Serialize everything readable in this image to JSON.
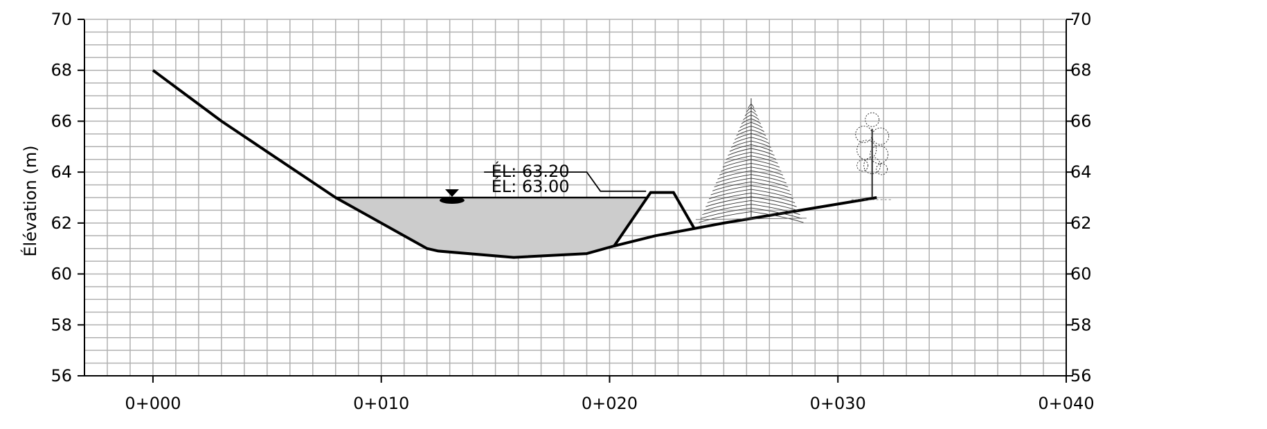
{
  "chart_data": {
    "type": "cross-section",
    "ylabel": "Élévation (m)",
    "xlabel": "",
    "xlim": [
      -3,
      40
    ],
    "ylim": [
      56,
      70
    ],
    "x_ticks": [
      {
        "value": 0,
        "label": "0+000"
      },
      {
        "value": 10,
        "label": "0+010"
      },
      {
        "value": 20,
        "label": "0+020"
      },
      {
        "value": 30,
        "label": "0+030"
      },
      {
        "value": 40,
        "label": "0+040"
      }
    ],
    "y_ticks": [
      {
        "value": 56,
        "label": "56"
      },
      {
        "value": 58,
        "label": "58"
      },
      {
        "value": 60,
        "label": "60"
      },
      {
        "value": 62,
        "label": "62"
      },
      {
        "value": 64,
        "label": "64"
      },
      {
        "value": 66,
        "label": "66"
      },
      {
        "value": 68,
        "label": "68"
      },
      {
        "value": 70,
        "label": "70"
      }
    ],
    "grid": true,
    "ground_profile": [
      {
        "x": 0,
        "y": 68.0
      },
      {
        "x": 3,
        "y": 66.0
      },
      {
        "x": 8,
        "y": 63.0
      },
      {
        "x": 12,
        "y": 61.0
      },
      {
        "x": 12.5,
        "y": 60.9
      },
      {
        "x": 15.8,
        "y": 60.65
      },
      {
        "x": 19,
        "y": 60.8
      },
      {
        "x": 20.2,
        "y": 61.1
      },
      {
        "x": 22,
        "y": 61.5
      },
      {
        "x": 25,
        "y": 62.0
      },
      {
        "x": 31.7,
        "y": 63.0
      }
    ],
    "water": {
      "level": 63.0,
      "polygon": [
        {
          "x": 8,
          "y": 63.0
        },
        {
          "x": 12,
          "y": 61.0
        },
        {
          "x": 12.5,
          "y": 60.9
        },
        {
          "x": 15.8,
          "y": 60.65
        },
        {
          "x": 19,
          "y": 60.8
        },
        {
          "x": 20.2,
          "y": 61.1
        },
        {
          "x": 21.6,
          "y": 63.0
        }
      ],
      "fill": "#cccccc"
    },
    "dike": [
      {
        "x": 20.2,
        "y": 61.1
      },
      {
        "x": 21.8,
        "y": 63.2
      },
      {
        "x": 22.8,
        "y": 63.2
      },
      {
        "x": 23.7,
        "y": 61.8
      }
    ],
    "water_symbol_x": 13.1,
    "annotations": [
      {
        "text": "ÉL:  63.20",
        "x": 15.0,
        "y": 63.82,
        "leader": [
          {
            "x": 14.5,
            "y": 64.0
          },
          {
            "x": 19.0,
            "y": 64.0
          },
          {
            "x": 19.6,
            "y": 63.25
          },
          {
            "x": 21.6,
            "y": 63.25
          }
        ]
      },
      {
        "text": "ÉL:  63.00",
        "x": 15.0,
        "y": 63.22,
        "leader": [
          {
            "x": 14.5,
            "y": 63.0
          },
          {
            "x": 19.0,
            "y": 63.0
          }
        ]
      }
    ],
    "trees": [
      {
        "kind": "conifer-icon",
        "x": 26.2,
        "y_base": 62.3,
        "y_top": 66.9
      },
      {
        "kind": "deciduous-tree-icon",
        "x": 31.5,
        "y_base": 63.0,
        "y_top": 66.6
      }
    ]
  }
}
